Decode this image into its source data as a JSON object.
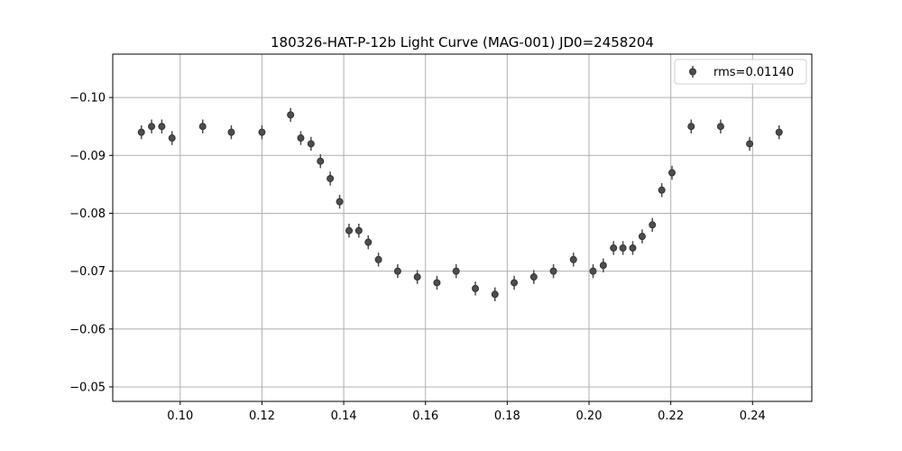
{
  "chart_data": {
    "type": "scatter",
    "title": "180326-HAT-P-12b Light Curve (MAG-001) JD0=2458204",
    "xlabel": "",
    "ylabel": "",
    "xlim": [
      0.0835,
      0.2545
    ],
    "ylim": [
      -0.1075,
      -0.0475
    ],
    "y_inverted": true,
    "grid": true,
    "legend_position": "top-right",
    "xticks": [
      0.1,
      0.12,
      0.14,
      0.16,
      0.18,
      0.2,
      0.22,
      0.24
    ],
    "xtick_labels": [
      "0.10",
      "0.12",
      "0.14",
      "0.16",
      "0.18",
      "0.20",
      "0.22",
      "0.24"
    ],
    "yticks": [
      -0.1,
      -0.09,
      -0.08,
      -0.07,
      -0.06,
      -0.05
    ],
    "ytick_labels": [
      "−0.10",
      "−0.09",
      "−0.08",
      "−0.07",
      "−0.06",
      "−0.05"
    ],
    "series": [
      {
        "name": "rms=0.01140",
        "color": "#4d4d4d",
        "marker": "circle",
        "errorbars": true,
        "x": [
          0.0905,
          0.093,
          0.0955,
          0.098,
          0.1055,
          0.1125,
          0.12,
          0.127,
          0.1295,
          0.132,
          0.1343,
          0.1367,
          0.139,
          0.1413,
          0.1437,
          0.146,
          0.1485,
          0.1532,
          0.158,
          0.1628,
          0.1675,
          0.1722,
          0.177,
          0.1817,
          0.1865,
          0.1913,
          0.1962,
          0.201,
          0.2035,
          0.206,
          0.2083,
          0.2107,
          0.213,
          0.2155,
          0.2178,
          0.2203,
          0.225,
          0.2322,
          0.2393,
          0.2465
        ],
        "y": [
          -0.094,
          -0.095,
          -0.095,
          -0.093,
          -0.095,
          -0.094,
          -0.094,
          -0.097,
          -0.093,
          -0.092,
          -0.089,
          -0.086,
          -0.082,
          -0.077,
          -0.077,
          -0.075,
          -0.072,
          -0.07,
          -0.069,
          -0.068,
          -0.07,
          -0.067,
          -0.066,
          -0.068,
          -0.069,
          -0.07,
          -0.072,
          -0.07,
          -0.071,
          -0.074,
          -0.074,
          -0.074,
          -0.076,
          -0.078,
          -0.084,
          -0.087,
          -0.095,
          -0.095,
          -0.092,
          -0.094
        ],
        "yerr": [
          0.0012,
          0.0012,
          0.0012,
          0.0012,
          0.0012,
          0.0012,
          0.0012,
          0.0012,
          0.0012,
          0.0012,
          0.0012,
          0.0012,
          0.0012,
          0.0012,
          0.0012,
          0.0012,
          0.0012,
          0.0012,
          0.0012,
          0.0012,
          0.0012,
          0.0012,
          0.0012,
          0.0012,
          0.0012,
          0.0012,
          0.0012,
          0.0012,
          0.0012,
          0.0012,
          0.0012,
          0.0012,
          0.0012,
          0.0012,
          0.0012,
          0.0012,
          0.0012,
          0.0012,
          0.0012,
          0.0012
        ]
      }
    ]
  }
}
